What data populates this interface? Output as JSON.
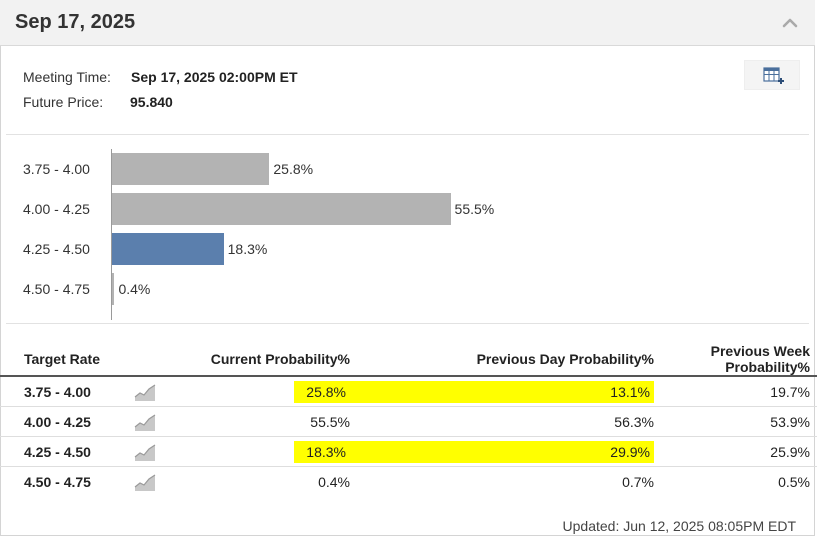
{
  "header": {
    "title": "Sep 17, 2025"
  },
  "meeting": {
    "time_label": "Meeting Time:",
    "time_value": "Sep 17, 2025 02:00PM ET",
    "price_label": "Future Price:",
    "price_value": "95.840"
  },
  "chart_data": {
    "type": "bar",
    "orientation": "horizontal",
    "categories": [
      "3.75 - 4.00",
      "4.00 - 4.25",
      "4.25 - 4.50",
      "4.50 - 4.75"
    ],
    "values": [
      25.8,
      55.5,
      18.3,
      0.4
    ],
    "value_labels": [
      "25.8%",
      "55.5%",
      "18.3%",
      "0.4%"
    ],
    "highlight_index": 2,
    "colors": {
      "default": "#b3b3b3",
      "highlight": "#5b7fad"
    },
    "xlim": [
      0,
      100
    ]
  },
  "table": {
    "headers": [
      "Target Rate",
      "Current Probability%",
      "Previous Day Probability%",
      "Previous Week Probability%"
    ],
    "rows": [
      {
        "rate": "3.75 - 4.00",
        "current": "25.8%",
        "prev_day": "13.1%",
        "prev_week": "19.7%",
        "highlight": true
      },
      {
        "rate": "4.00 - 4.25",
        "current": "55.5%",
        "prev_day": "56.3%",
        "prev_week": "53.9%",
        "highlight": false
      },
      {
        "rate": "4.25 - 4.50",
        "current": "18.3%",
        "prev_day": "29.9%",
        "prev_week": "25.9%",
        "highlight": true
      },
      {
        "rate": "4.50 - 4.75",
        "current": "0.4%",
        "prev_day": "0.7%",
        "prev_week": "0.5%",
        "highlight": false
      }
    ],
    "highlight_color": "#ffff00"
  },
  "footer": {
    "updated": "Updated: Jun 12, 2025 08:05PM EDT"
  },
  "icons": {
    "collapse": "chevron-up-icon",
    "table_view": "table-add-icon",
    "trend": "trend-chart-icon"
  }
}
